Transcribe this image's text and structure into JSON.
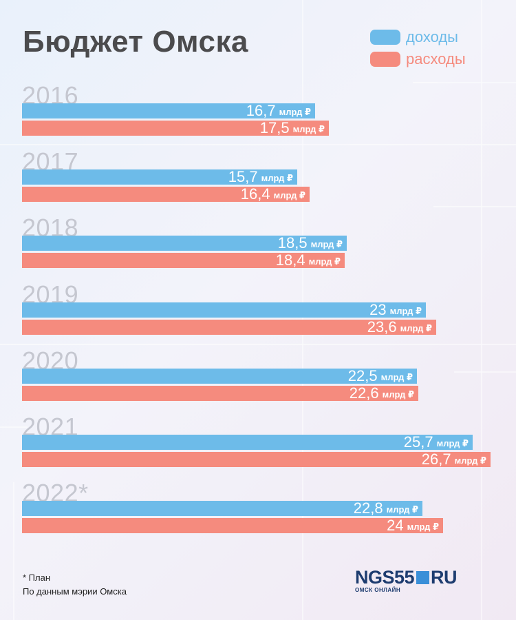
{
  "title": "Бюджет Омска",
  "legend": [
    {
      "label": "доходы",
      "color": "#6dbbe9",
      "text_color": "#6dbbe9"
    },
    {
      "label": "расходы",
      "color": "#f58b7e",
      "text_color": "#f58b7e"
    }
  ],
  "chart_data": {
    "type": "bar",
    "orientation": "horizontal",
    "title": "Бюджет Омска",
    "unit": "млрд ₽",
    "categories": [
      "2016",
      "2017",
      "2018",
      "2019",
      "2020",
      "2021",
      "2022*"
    ],
    "series": [
      {
        "name": "доходы",
        "color": "#6dbbe9",
        "values": [
          16.7,
          15.7,
          18.5,
          23,
          22.5,
          25.7,
          22.8
        ],
        "labels": [
          "16,7",
          "15,7",
          "18,5",
          "23",
          "22,5",
          "25,7",
          "22,8"
        ]
      },
      {
        "name": "расходы",
        "color": "#f58b7e",
        "values": [
          17.5,
          16.4,
          18.4,
          23.6,
          22.6,
          26.7,
          24
        ],
        "labels": [
          "17,5",
          "16,4",
          "18,4",
          "23,6",
          "22,6",
          "26,7",
          "24"
        ]
      }
    ],
    "xlim": [
      0,
      26.7
    ]
  },
  "footnotes": {
    "plan": "* План",
    "source": "По данным мэрии Омска"
  },
  "logo": {
    "main": "NGS55",
    "suffix": "RU",
    "subtitle": "ОМСК ОНЛАЙН"
  }
}
